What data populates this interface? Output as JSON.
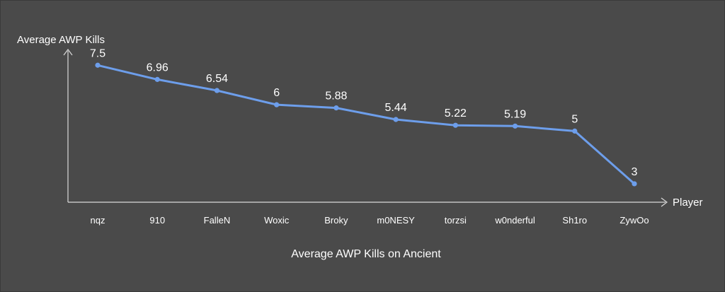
{
  "chart_data": {
    "type": "line",
    "title": "Average AWP Kills on Ancient",
    "xlabel": "Player",
    "ylabel": "Average AWP Kills",
    "categories": [
      "nqz",
      "910",
      "FalleN",
      "Woxic",
      "Broky",
      "m0NESY",
      "torzsi",
      "w0nderful",
      "Sh1ro",
      "ZywOo"
    ],
    "series": [
      {
        "values": [
          7.5,
          6.96,
          6.54,
          6,
          5.88,
          5.44,
          5.22,
          5.19,
          5,
          3
        ]
      }
    ],
    "ylim": [
      2.3,
      8.5
    ],
    "grid": false,
    "legend": "none",
    "colors": {
      "line": "#6d9eeb",
      "text": "#ffffff",
      "axis": "#d9d9d9",
      "background": "#4a4a4a"
    }
  }
}
